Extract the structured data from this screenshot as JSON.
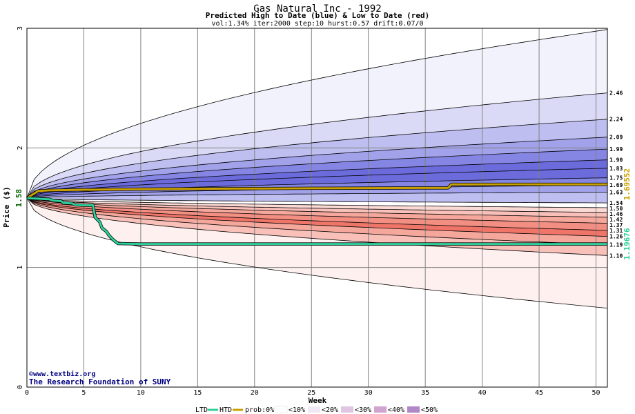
{
  "chart_data": {
    "type": "area",
    "title": "Gas Natural Inc - 1992",
    "subtitle": "Predicted High to Date (blue) &  Low to Date (red)",
    "params": "vol:1.34% iter:2000 step:10 hurst:0.57 drift:0.07/0",
    "xlabel": "Week",
    "ylabel": "Price ($)",
    "xlim": [
      0,
      51
    ],
    "ylim": [
      0,
      3
    ],
    "x_ticks": [
      0,
      5,
      10,
      15,
      20,
      25,
      30,
      35,
      40,
      45,
      50
    ],
    "y_ticks": [
      0,
      1,
      2,
      3
    ],
    "start_price": 1.58,
    "start_price_label": "1.58",
    "grid": true,
    "final_labels": [
      "2.46",
      "2.24",
      "2.09",
      "1.99",
      "1.90",
      "1.83",
      "1.75",
      "1.69",
      "1.63",
      "1.54",
      "1.50",
      "1.46",
      "1.42",
      "1.37",
      "1.31",
      "1.26",
      "1.19",
      "1.10"
    ],
    "high_envelope_end": 2.99,
    "low_envelope_end": 0.66,
    "series": [
      {
        "name": "HTD",
        "color": "#c8a000",
        "x": [
          0,
          1,
          2,
          5,
          10,
          15,
          20,
          25,
          30,
          35,
          37,
          37.3,
          40,
          45,
          51
        ],
        "values": [
          1.58,
          1.64,
          1.645,
          1.65,
          1.655,
          1.658,
          1.66,
          1.662,
          1.664,
          1.665,
          1.665,
          1.69552,
          1.69552,
          1.69552,
          1.69552
        ]
      },
      {
        "name": "LTD",
        "color": "#2ecf9a",
        "x": [
          0,
          1,
          2,
          2.3,
          3,
          3.2,
          4,
          4.2,
          5,
          5.8,
          6,
          6.4,
          6.6,
          7,
          7.2,
          7.6,
          8,
          10,
          20,
          30,
          40,
          51
        ],
        "values": [
          1.58,
          1.575,
          1.57,
          1.56,
          1.555,
          1.54,
          1.535,
          1.525,
          1.52,
          1.52,
          1.42,
          1.38,
          1.33,
          1.3,
          1.27,
          1.23,
          1.2,
          1.19676,
          1.19676,
          1.19676,
          1.19676,
          1.19676
        ]
      }
    ],
    "htd_final_label": "1.69552",
    "ltd_final_label": "1.19676",
    "legend": {
      "ltd": "LTD",
      "htd": "HTD",
      "prob_label": "prob:0%",
      "bins": [
        "<10%",
        "<20%",
        "<30%",
        "<40%",
        "<50%"
      ]
    },
    "colors": {
      "grid": "#808080",
      "htd": "#c8a000",
      "ltd": "#2ecf9a",
      "start_label": "#006000",
      "blue_bands": [
        "#f2f2fc",
        "#dadaf6",
        "#bebef0",
        "#a2a2ea",
        "#8585e3",
        "#6b6bdc"
      ],
      "red_bands": [
        "#fdf0ee",
        "#fbd9d4",
        "#f8c0b8",
        "#f5a79c",
        "#f28e82",
        "#ef7569"
      ],
      "credit": "#000080"
    }
  },
  "credit": {
    "site": "www.textbiz.org",
    "org": "The Research Foundation of SUNY"
  }
}
